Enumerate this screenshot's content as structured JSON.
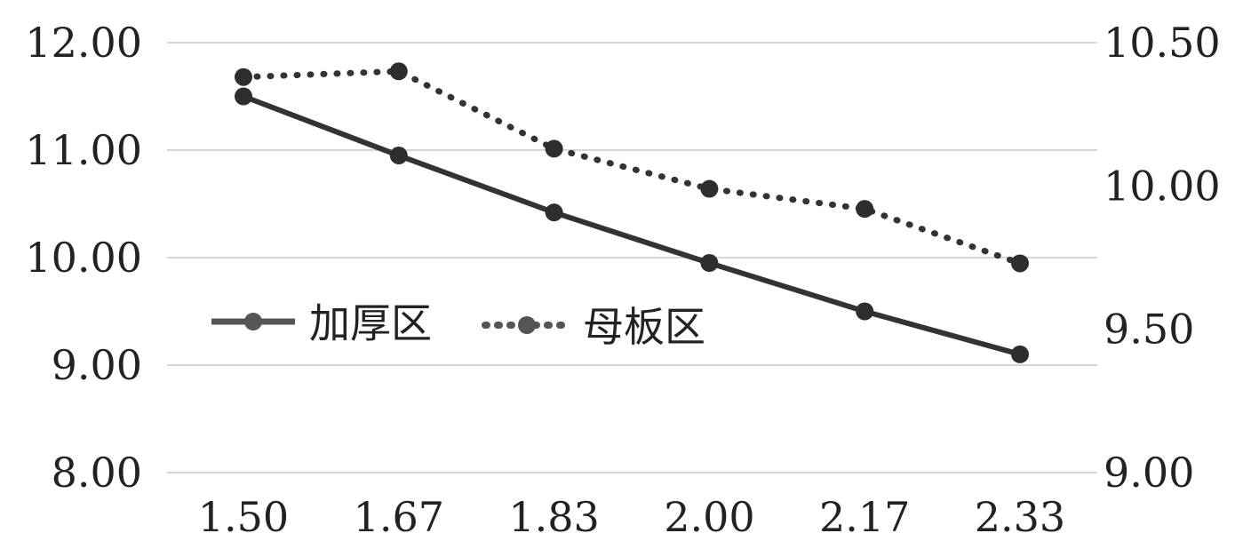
{
  "chart_data": {
    "type": "line",
    "x": [
      "1.50",
      "1.67",
      "1.83",
      "2.00",
      "2.17",
      "2.33"
    ],
    "series": [
      {
        "name": "加厚区",
        "axis": "left",
        "style": "solid",
        "values": [
          11.5,
          10.95,
          10.42,
          9.95,
          9.5,
          9.1
        ]
      },
      {
        "name": "母板区",
        "axis": "right",
        "style": "dotted",
        "values": [
          10.38,
          10.4,
          10.13,
          9.99,
          9.92,
          9.73
        ]
      }
    ],
    "y_left": {
      "min": 8,
      "max": 12,
      "ticks": [
        "8.00",
        "9.00",
        "10.00",
        "11.00",
        "12.00"
      ]
    },
    "y_right": {
      "min": 9,
      "max": 10.5,
      "ticks": [
        "9.00",
        "9.50",
        "10.00",
        "10.50"
      ]
    },
    "grid": true,
    "legend_position": "center-left",
    "colors": {
      "line": "#333333",
      "marker": "#2e2e2e",
      "grid": "#c8c8c8",
      "legend_marker": "#555555"
    }
  }
}
